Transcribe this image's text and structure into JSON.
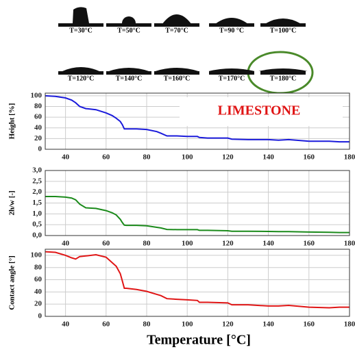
{
  "images": [
    {
      "label": "T=30°C"
    },
    {
      "label": "T=50°C"
    },
    {
      "label": "T=70°C"
    },
    {
      "label": "T=90 °C"
    },
    {
      "label": "T=100°C"
    },
    {
      "label": "T=120°C"
    },
    {
      "label": "T=140°C"
    },
    {
      "label": "T=160°C"
    },
    {
      "label": "T=170°C"
    },
    {
      "label": "T=180°C"
    }
  ],
  "chart_data": [
    {
      "type": "line",
      "ylabel": "Height [%]",
      "annotation": "LIMESTONE",
      "color": "#1a1adb",
      "grid": true,
      "x": [
        30,
        35,
        40,
        43,
        45,
        47,
        50,
        55,
        60,
        63,
        65,
        67,
        68,
        69,
        70,
        75,
        80,
        85,
        87,
        90,
        95,
        100,
        105,
        106,
        110,
        120,
        122,
        130,
        140,
        145,
        150,
        160,
        170,
        175,
        180
      ],
      "values": [
        100,
        99,
        96,
        92,
        87,
        80,
        76,
        74,
        68,
        63,
        58,
        52,
        46,
        38,
        38,
        38,
        37,
        33,
        30,
        25,
        25,
        24,
        24,
        22,
        21,
        21,
        19,
        18,
        18,
        17,
        18,
        15,
        15,
        14,
        14
      ],
      "xlim": [
        30,
        180
      ],
      "xticks": [
        40,
        60,
        80,
        100,
        120,
        140,
        160,
        180
      ],
      "ylim": [
        0,
        105
      ],
      "yticks": [
        0,
        20,
        40,
        60,
        80,
        100
      ]
    },
    {
      "type": "line",
      "ylabel": "2h/w [-]",
      "color": "#1a8a1a",
      "grid": true,
      "x": [
        30,
        35,
        40,
        43,
        45,
        47,
        50,
        55,
        60,
        63,
        65,
        67,
        68,
        69,
        70,
        75,
        80,
        85,
        87,
        90,
        95,
        100,
        105,
        106,
        110,
        120,
        122,
        130,
        140,
        145,
        150,
        160,
        170,
        175,
        180
      ],
      "values": [
        1.8,
        1.8,
        1.77,
        1.73,
        1.65,
        1.45,
        1.28,
        1.25,
        1.15,
        1.05,
        0.95,
        0.75,
        0.6,
        0.48,
        0.47,
        0.47,
        0.45,
        0.38,
        0.35,
        0.28,
        0.27,
        0.27,
        0.27,
        0.24,
        0.24,
        0.22,
        0.2,
        0.2,
        0.19,
        0.18,
        0.18,
        0.16,
        0.15,
        0.14,
        0.14
      ],
      "xlim": [
        30,
        180
      ],
      "xticks": [
        40,
        60,
        80,
        100,
        120,
        140,
        160,
        180
      ],
      "ylim": [
        0,
        3
      ],
      "yticks": [
        {
          "value": 0,
          "label": "0,0"
        },
        {
          "value": 0.5,
          "label": "0,5"
        },
        {
          "value": 1,
          "label": "1,0"
        },
        {
          "value": 1.5,
          "label": "1,5"
        },
        {
          "value": 2,
          "label": "2,0"
        },
        {
          "value": 2.5,
          "label": "2,5"
        },
        {
          "value": 3,
          "label": "3,0"
        }
      ]
    },
    {
      "type": "line",
      "ylabel": "Contact angle [°]",
      "xlabel": "Temperature [°C]",
      "color": "#e01515",
      "grid": true,
      "x": [
        30,
        35,
        40,
        43,
        45,
        47,
        50,
        55,
        60,
        63,
        65,
        67,
        68,
        69,
        70,
        75,
        80,
        85,
        87,
        90,
        95,
        100,
        105,
        106,
        110,
        120,
        122,
        130,
        140,
        145,
        150,
        160,
        170,
        175,
        180
      ],
      "values": [
        106,
        105,
        100,
        96,
        94,
        98,
        99,
        101,
        97,
        88,
        82,
        70,
        58,
        46,
        46,
        44,
        41,
        36,
        34,
        29,
        28,
        27,
        26,
        23,
        23,
        22,
        19,
        19,
        17,
        17,
        18,
        15,
        14,
        15,
        15
      ],
      "xlim": [
        30,
        180
      ],
      "xticks": [
        40,
        60,
        80,
        100,
        120,
        140,
        160,
        180
      ],
      "ylim": [
        0,
        110
      ],
      "yticks": [
        0,
        20,
        40,
        60,
        80,
        100
      ]
    }
  ]
}
